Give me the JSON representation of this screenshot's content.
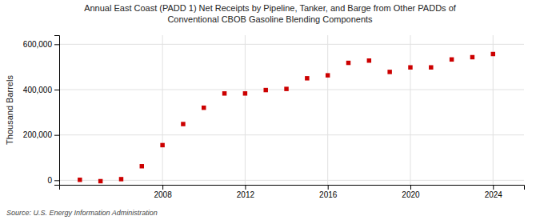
{
  "chart_data": {
    "type": "scatter",
    "title": "Annual East Coast (PADD 1) Net Receipts by Pipeline, Tanker, and Barge from Other PADDs of\nConventional CBOB Gasoline Blending Components",
    "y_label": "Thousand Barrels",
    "source": "Source: U.S. Energy Information Administration",
    "x": [
      2004,
      2005,
      2006,
      2007,
      2008,
      2009,
      2010,
      2011,
      2012,
      2013,
      2014,
      2015,
      2016,
      2017,
      2018,
      2019,
      2020,
      2021,
      2022,
      2023,
      2024
    ],
    "values": [
      2000,
      -4000,
      5000,
      62000,
      155000,
      248000,
      320000,
      383000,
      383000,
      398000,
      403000,
      450000,
      463000,
      518000,
      528000,
      478000,
      498000,
      498000,
      533000,
      543000,
      557000
    ],
    "color": "#cc0000",
    "marker": "square",
    "xlim": [
      2003,
      2025.5
    ],
    "xticks": [
      2008,
      2012,
      2016,
      2020,
      2024
    ],
    "ylim": [
      -20000,
      640000
    ],
    "yticks": [
      0,
      {
        "value": 200000,
        "label": "200,000"
      },
      {
        "value": 400000,
        "label": "400,000"
      },
      {
        "value": 600000,
        "label": "600,000"
      }
    ],
    "grid": true
  }
}
